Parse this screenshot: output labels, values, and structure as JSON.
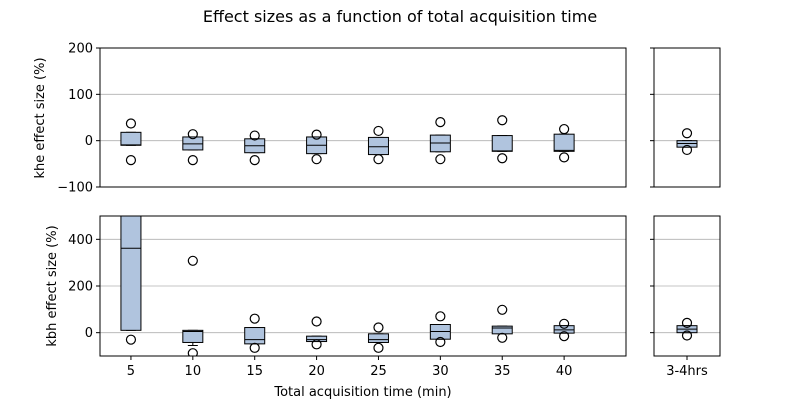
{
  "chart_data": {
    "type": "box",
    "title": "Effect sizes as a function of total acquisition time",
    "xlabel": "Total acquisition time (min)",
    "categories": [
      "5",
      "10",
      "15",
      "20",
      "25",
      "30",
      "35",
      "40"
    ],
    "extra_category": "3-4hrs",
    "grid": "horizontal",
    "panels": [
      {
        "id": "khe",
        "ylabel": "khe effect size (%)",
        "ylim": [
          -100,
          200
        ],
        "yticks": [
          -100,
          0,
          100,
          200
        ],
        "boxes": [
          {
            "q1": -10,
            "median": -9,
            "q3": 18,
            "wlo": -10,
            "whi": 18,
            "fliers": [
              37,
              -42
            ]
          },
          {
            "q1": -20,
            "median": -7,
            "q3": 8,
            "wlo": -20,
            "whi": 8,
            "fliers": [
              14,
              -42
            ]
          },
          {
            "q1": -26,
            "median": -11,
            "q3": 4,
            "wlo": -26,
            "whi": 4,
            "fliers": [
              11,
              -42
            ]
          },
          {
            "q1": -28,
            "median": -10,
            "q3": 8,
            "wlo": -28,
            "whi": 8,
            "fliers": [
              13,
              -40
            ]
          },
          {
            "q1": -30,
            "median": -13,
            "q3": 7,
            "wlo": -30,
            "whi": 7,
            "fliers": [
              21,
              -40
            ]
          },
          {
            "q1": -24,
            "median": -5,
            "q3": 12,
            "wlo": -24,
            "whi": 12,
            "fliers": [
              40,
              -40
            ]
          },
          {
            "q1": -23,
            "median": -22,
            "q3": 11,
            "wlo": -23,
            "whi": 11,
            "fliers": [
              44,
              -38
            ]
          },
          {
            "q1": -23,
            "median": -21,
            "q3": 14,
            "wlo": -23,
            "whi": 14,
            "fliers": [
              25,
              -36
            ]
          }
        ],
        "extra_box": {
          "q1": -14,
          "median": -6,
          "q3": 0,
          "wlo": -14,
          "whi": 0,
          "fliers": [
            16,
            -20
          ]
        }
      },
      {
        "id": "kbh",
        "ylabel": "kbh effect size (%)",
        "ylim": [
          -100,
          500
        ],
        "yticks": [
          0,
          200,
          400
        ],
        "boxes": [
          {
            "q1": 10,
            "median": 362,
            "q3": 520,
            "wlo": 10,
            "whi": 520,
            "fliers": [
              -30
            ]
          },
          {
            "q1": -42,
            "median": 5,
            "q3": 10,
            "wlo": -55,
            "whi": 10,
            "fliers": [
              308,
              -88
            ]
          },
          {
            "q1": -48,
            "median": -30,
            "q3": 22,
            "wlo": -48,
            "whi": 22,
            "fliers": [
              60,
              -65
            ]
          },
          {
            "q1": -38,
            "median": -30,
            "q3": -15,
            "wlo": -38,
            "whi": -15,
            "fliers": [
              48,
              -50
            ]
          },
          {
            "q1": -42,
            "median": -30,
            "q3": -5,
            "wlo": -42,
            "whi": -5,
            "fliers": [
              22,
              -65
            ]
          },
          {
            "q1": -28,
            "median": 5,
            "q3": 35,
            "wlo": -28,
            "whi": 35,
            "fliers": [
              70,
              -40
            ]
          },
          {
            "q1": -5,
            "median": 20,
            "q3": 28,
            "wlo": -5,
            "whi": 28,
            "fliers": [
              98,
              -22
            ]
          },
          {
            "q1": -2,
            "median": 12,
            "q3": 30,
            "wlo": -2,
            "whi": 30,
            "fliers": [
              38,
              -15
            ]
          }
        ],
        "extra_box": {
          "q1": 0,
          "median": 15,
          "q3": 30,
          "wlo": 0,
          "whi": 30,
          "fliers": [
            42,
            -12
          ]
        }
      }
    ]
  }
}
